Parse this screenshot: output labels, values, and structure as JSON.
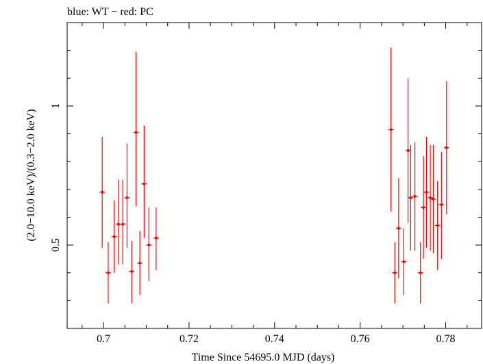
{
  "chart_data": {
    "type": "scatter",
    "title": "blue: WT − red: PC",
    "xlabel": "Time Since 54695.0 MJD (days)",
    "ylabel": "(2.0−10.0 keV)/(0.3−2.0 keV)",
    "xlim": [
      0.6915,
      0.7884
    ],
    "ylim": [
      0.2,
      1.3
    ],
    "x_ticks": [
      0.7,
      0.72,
      0.74,
      0.76,
      0.78
    ],
    "x_tick_labels": [
      "0.7",
      "0.72",
      "0.74",
      "0.76",
      "0.78"
    ],
    "y_ticks": [
      0.5,
      1
    ],
    "y_tick_labels": [
      "0.5",
      "1"
    ],
    "grid": false,
    "colors": {
      "pc": "#ff0000",
      "axis": "#000000"
    },
    "series": [
      {
        "color": "#ff0000",
        "points": [
          {
            "x": 0.6997,
            "y": 0.69,
            "lo": 0.49,
            "hi": 0.89
          },
          {
            "x": 0.7011,
            "y": 0.4,
            "lo": 0.29,
            "hi": 0.51
          },
          {
            "x": 0.7025,
            "y": 0.53,
            "lo": 0.4,
            "hi": 0.66
          },
          {
            "x": 0.7035,
            "y": 0.575,
            "lo": 0.43,
            "hi": 0.735
          },
          {
            "x": 0.7045,
            "y": 0.575,
            "lo": 0.43,
            "hi": 0.735
          },
          {
            "x": 0.7055,
            "y": 0.67,
            "lo": 0.49,
            "hi": 0.865
          },
          {
            "x": 0.7066,
            "y": 0.405,
            "lo": 0.29,
            "hi": 0.515
          },
          {
            "x": 0.7076,
            "y": 0.905,
            "lo": 0.64,
            "hi": 1.195
          },
          {
            "x": 0.7085,
            "y": 0.435,
            "lo": 0.32,
            "hi": 0.55
          },
          {
            "x": 0.7095,
            "y": 0.72,
            "lo": 0.525,
            "hi": 0.93
          },
          {
            "x": 0.7106,
            "y": 0.5,
            "lo": 0.37,
            "hi": 0.635
          },
          {
            "x": 0.7123,
            "y": 0.525,
            "lo": 0.41,
            "hi": 0.635
          },
          {
            "x": 0.7672,
            "y": 0.915,
            "lo": 0.62,
            "hi": 1.21
          },
          {
            "x": 0.7681,
            "y": 0.4,
            "lo": 0.29,
            "hi": 0.51
          },
          {
            "x": 0.769,
            "y": 0.56,
            "lo": 0.38,
            "hi": 0.74
          },
          {
            "x": 0.7702,
            "y": 0.44,
            "lo": 0.32,
            "hi": 0.56
          },
          {
            "x": 0.7712,
            "y": 0.84,
            "lo": 0.58,
            "hi": 1.1
          },
          {
            "x": 0.7718,
            "y": 0.67,
            "lo": 0.48,
            "hi": 0.86
          },
          {
            "x": 0.7728,
            "y": 0.675,
            "lo": 0.48,
            "hi": 0.87
          },
          {
            "x": 0.7741,
            "y": 0.4,
            "lo": 0.29,
            "hi": 0.51
          },
          {
            "x": 0.7748,
            "y": 0.635,
            "lo": 0.45,
            "hi": 0.82
          },
          {
            "x": 0.7755,
            "y": 0.69,
            "lo": 0.49,
            "hi": 0.89
          },
          {
            "x": 0.7764,
            "y": 0.67,
            "lo": 0.48,
            "hi": 0.86
          },
          {
            "x": 0.7771,
            "y": 0.665,
            "lo": 0.47,
            "hi": 0.86
          },
          {
            "x": 0.7781,
            "y": 0.57,
            "lo": 0.41,
            "hi": 0.73
          },
          {
            "x": 0.779,
            "y": 0.645,
            "lo": 0.45,
            "hi": 0.835
          },
          {
            "x": 0.7802,
            "y": 0.85,
            "lo": 0.61,
            "hi": 1.09
          }
        ]
      }
    ]
  }
}
